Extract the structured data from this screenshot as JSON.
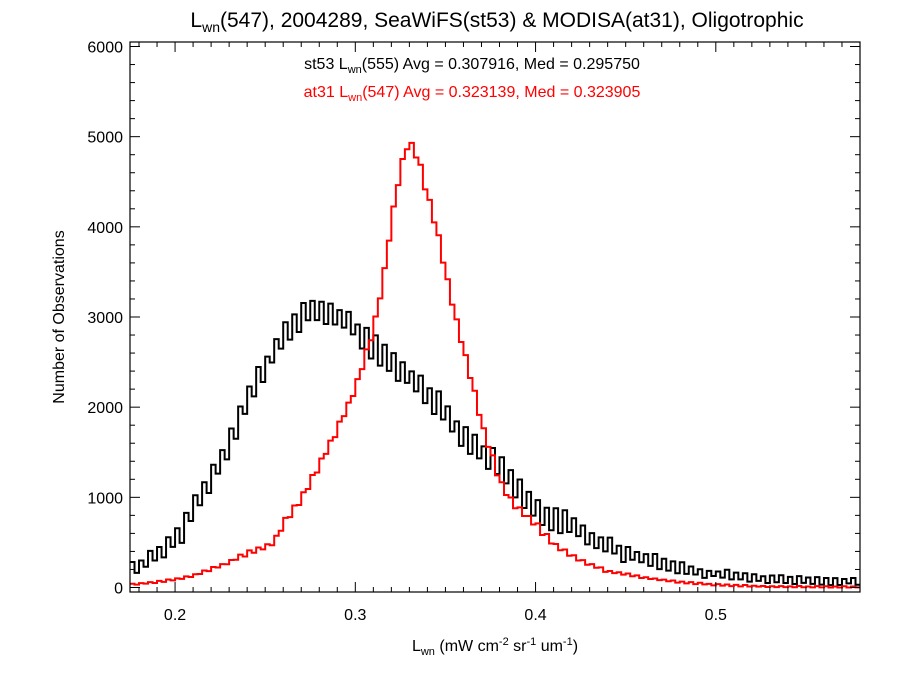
{
  "chart_data": {
    "type": "histogram",
    "title": {
      "prefix": "L",
      "sub": "wn",
      "rest": "(547), 2004289, SeaWiFS(st53) & MODISA(at31), Oligotrophic"
    },
    "xlabel": {
      "prefix": "L",
      "sub": "wn",
      "rest": " (mW cm",
      "sup1": "-2",
      "mid1": " sr",
      "sup2": "-1",
      "mid2": " um",
      "sup3": "-1",
      "end": ")"
    },
    "ylabel": "Number of Observations",
    "xlim": [
      0.175,
      0.58
    ],
    "ylim": [
      -50,
      6050
    ],
    "xticks": [
      0.2,
      0.3,
      0.4,
      0.5
    ],
    "xtick_labels": [
      "0.2",
      "0.3",
      "0.4",
      "0.5"
    ],
    "yticks": [
      0,
      1000,
      2000,
      3000,
      4000,
      5000,
      6000
    ],
    "ytick_labels": [
      "0",
      "1000",
      "2000",
      "3000",
      "4000",
      "5000",
      "6000"
    ],
    "bin_width": 0.0025,
    "annotations": [
      {
        "prefix": "st53 L",
        "sub": "wn",
        "rest": "(555) Avg = 0.307916, Med = 0.295750",
        "color": "#000000"
      },
      {
        "prefix": "at31 L",
        "sub": "wn",
        "rest": "(547) Avg = 0.323139, Med = 0.323905",
        "color": "#ff0000"
      }
    ],
    "series": [
      {
        "name": "st53",
        "color": "#000000",
        "points": [
          [
            0.175,
            200
          ],
          [
            0.185,
            300
          ],
          [
            0.195,
            430
          ],
          [
            0.205,
            680
          ],
          [
            0.215,
            1050
          ],
          [
            0.225,
            1400
          ],
          [
            0.235,
            1850
          ],
          [
            0.245,
            2270
          ],
          [
            0.255,
            2620
          ],
          [
            0.265,
            2880
          ],
          [
            0.275,
            3080
          ],
          [
            0.285,
            3060
          ],
          [
            0.295,
            2950
          ],
          [
            0.305,
            2760
          ],
          [
            0.315,
            2580
          ],
          [
            0.325,
            2430
          ],
          [
            0.335,
            2250
          ],
          [
            0.345,
            2050
          ],
          [
            0.355,
            1800
          ],
          [
            0.365,
            1600
          ],
          [
            0.375,
            1430
          ],
          [
            0.385,
            1200
          ],
          [
            0.395,
            1000
          ],
          [
            0.405,
            830
          ],
          [
            0.415,
            730
          ],
          [
            0.425,
            620
          ],
          [
            0.435,
            500
          ],
          [
            0.445,
            420
          ],
          [
            0.455,
            340
          ],
          [
            0.465,
            290
          ],
          [
            0.475,
            250
          ],
          [
            0.485,
            200
          ],
          [
            0.495,
            160
          ],
          [
            0.51,
            130
          ],
          [
            0.53,
            95
          ],
          [
            0.55,
            80
          ],
          [
            0.58,
            60
          ]
        ],
        "jitter": 160
      },
      {
        "name": "at31",
        "color": "#ff0000",
        "points": [
          [
            0.175,
            30
          ],
          [
            0.19,
            60
          ],
          [
            0.2,
            90
          ],
          [
            0.21,
            130
          ],
          [
            0.22,
            200
          ],
          [
            0.23,
            280
          ],
          [
            0.24,
            380
          ],
          [
            0.25,
            450
          ],
          [
            0.255,
            500
          ],
          [
            0.26,
            700
          ],
          [
            0.27,
            980
          ],
          [
            0.28,
            1350
          ],
          [
            0.29,
            1750
          ],
          [
            0.3,
            2200
          ],
          [
            0.31,
            2850
          ],
          [
            0.315,
            3350
          ],
          [
            0.32,
            4050
          ],
          [
            0.325,
            4650
          ],
          [
            0.33,
            4960
          ],
          [
            0.335,
            4750
          ],
          [
            0.34,
            4350
          ],
          [
            0.345,
            4000
          ],
          [
            0.35,
            3500
          ],
          [
            0.355,
            3050
          ],
          [
            0.36,
            2650
          ],
          [
            0.365,
            2250
          ],
          [
            0.37,
            1830
          ],
          [
            0.375,
            1500
          ],
          [
            0.38,
            1200
          ],
          [
            0.385,
            1000
          ],
          [
            0.39,
            880
          ],
          [
            0.4,
            700
          ],
          [
            0.41,
            480
          ],
          [
            0.42,
            350
          ],
          [
            0.43,
            260
          ],
          [
            0.44,
            180
          ],
          [
            0.46,
            110
          ],
          [
            0.48,
            60
          ],
          [
            0.5,
            30
          ],
          [
            0.53,
            10
          ],
          [
            0.58,
            5
          ]
        ],
        "jitter": 40
      }
    ]
  }
}
